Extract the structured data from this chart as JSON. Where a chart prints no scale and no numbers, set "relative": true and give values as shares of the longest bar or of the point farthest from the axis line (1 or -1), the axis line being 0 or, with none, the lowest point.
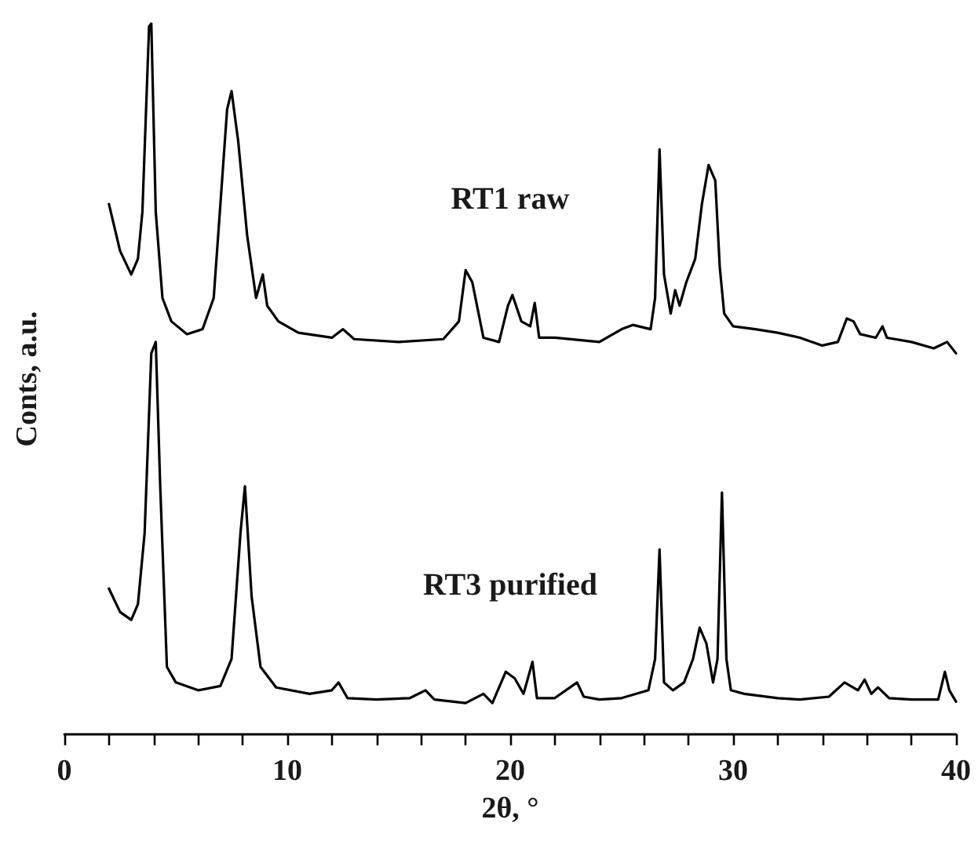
{
  "chart_data": {
    "type": "line",
    "xlabel": "2θ, °",
    "ylabel": "Conts, a.u.",
    "relative": true,
    "xlim": [
      0,
      40
    ],
    "xticks": [
      0,
      {
        "value": 2,
        "label": null
      },
      {
        "value": 4,
        "label": null
      },
      {
        "value": 6,
        "label": null
      },
      {
        "value": 8,
        "label": null
      },
      10,
      {
        "value": 12,
        "label": null
      },
      {
        "value": 14,
        "label": null
      },
      {
        "value": 16,
        "label": null
      },
      {
        "value": 18,
        "label": null
      },
      20,
      {
        "value": 22,
        "label": null
      },
      {
        "value": 24,
        "label": null
      },
      {
        "value": 26,
        "label": null
      },
      {
        "value": 28,
        "label": null
      },
      30,
      {
        "value": 32,
        "label": null
      },
      {
        "value": 34,
        "label": null
      },
      {
        "value": 36,
        "label": null
      },
      {
        "value": 38,
        "label": null
      },
      40
    ],
    "tick_labels": "x",
    "grid": false,
    "legend": false,
    "marker": "none",
    "line_style": "solid",
    "series": [
      {
        "name": "RT1 raw",
        "color": "#000000",
        "x": [
          2.0,
          2.5,
          3.0,
          3.3,
          3.5,
          3.8,
          3.9,
          4.1,
          4.4,
          4.8,
          5.5,
          6.2,
          6.7,
          7.0,
          7.3,
          7.5,
          7.8,
          8.2,
          8.6,
          8.9,
          9.1,
          9.6,
          10.5,
          12.0,
          12.5,
          13,
          15,
          17,
          17.7,
          18.0,
          18.3,
          18.8,
          19.5,
          19.9,
          20.1,
          20.5,
          20.9,
          21.1,
          21.3,
          22,
          24,
          25,
          25.5,
          26.3,
          26.5,
          26.7,
          26.9,
          27.2,
          27.4,
          27.6,
          27.9,
          28.3,
          28.6,
          28.9,
          29.2,
          29.4,
          29.6,
          30,
          31,
          32,
          33,
          34,
          34.7,
          35.1,
          35.4,
          35.7,
          36.4,
          36.7,
          36.9,
          38,
          39,
          39.6,
          40
        ],
        "values": [
          0.746,
          0.68,
          0.647,
          0.669,
          0.735,
          0.996,
          1,
          0.735,
          0.614,
          0.581,
          0.563,
          0.57,
          0.614,
          0.746,
          0.879,
          0.905,
          0.834,
          0.702,
          0.614,
          0.647,
          0.603,
          0.581,
          0.565,
          0.558,
          0.57,
          0.556,
          0.552,
          0.556,
          0.581,
          0.653,
          0.636,
          0.558,
          0.552,
          0.603,
          0.618,
          0.581,
          0.574,
          0.607,
          0.558,
          0.558,
          0.552,
          0.57,
          0.576,
          0.57,
          0.614,
          0.823,
          0.647,
          0.592,
          0.625,
          0.603,
          0.636,
          0.669,
          0.746,
          0.801,
          0.779,
          0.658,
          0.592,
          0.574,
          0.57,
          0.565,
          0.558,
          0.547,
          0.552,
          0.585,
          0.581,
          0.563,
          0.558,
          0.574,
          0.558,
          0.552,
          0.543,
          0.552,
          0.536
        ]
      },
      {
        "name": "RT3 purified",
        "color": "#000000",
        "x": [
          2.0,
          2.5,
          3.0,
          3.3,
          3.6,
          3.9,
          4.1,
          4.3,
          4.6,
          5,
          6,
          7,
          7.5,
          7.9,
          8.1,
          8.4,
          8.8,
          9.5,
          11,
          12,
          12.3,
          12.7,
          14,
          15.5,
          16.2,
          16.6,
          18,
          18.8,
          19.2,
          19.8,
          20.2,
          20.6,
          21,
          21.2,
          22,
          23,
          23.3,
          24,
          25,
          26.2,
          26.5,
          26.7,
          26.9,
          27.3,
          27.8,
          28.2,
          28.5,
          28.8,
          29.1,
          29.3,
          29.5,
          29.7,
          29.9,
          30.5,
          32,
          33,
          34.3,
          35,
          35.6,
          35.9,
          36.2,
          36.5,
          37,
          38,
          39.2,
          39.5,
          39.7,
          40
        ],
        "values": [
          0.205,
          0.172,
          0.161,
          0.183,
          0.283,
          0.536,
          0.552,
          0.349,
          0.095,
          0.073,
          0.062,
          0.068,
          0.106,
          0.283,
          0.349,
          0.194,
          0.095,
          0.066,
          0.057,
          0.062,
          0.073,
          0.051,
          0.049,
          0.051,
          0.062,
          0.049,
          0.044,
          0.057,
          0.044,
          0.088,
          0.079,
          0.057,
          0.102,
          0.051,
          0.051,
          0.073,
          0.053,
          0.049,
          0.051,
          0.062,
          0.106,
          0.26,
          0.073,
          0.062,
          0.073,
          0.106,
          0.15,
          0.128,
          0.073,
          0.106,
          0.34,
          0.106,
          0.062,
          0.057,
          0.051,
          0.049,
          0.053,
          0.073,
          0.062,
          0.077,
          0.057,
          0.066,
          0.051,
          0.049,
          0.049,
          0.088,
          0.062,
          0.046
        ]
      }
    ]
  }
}
